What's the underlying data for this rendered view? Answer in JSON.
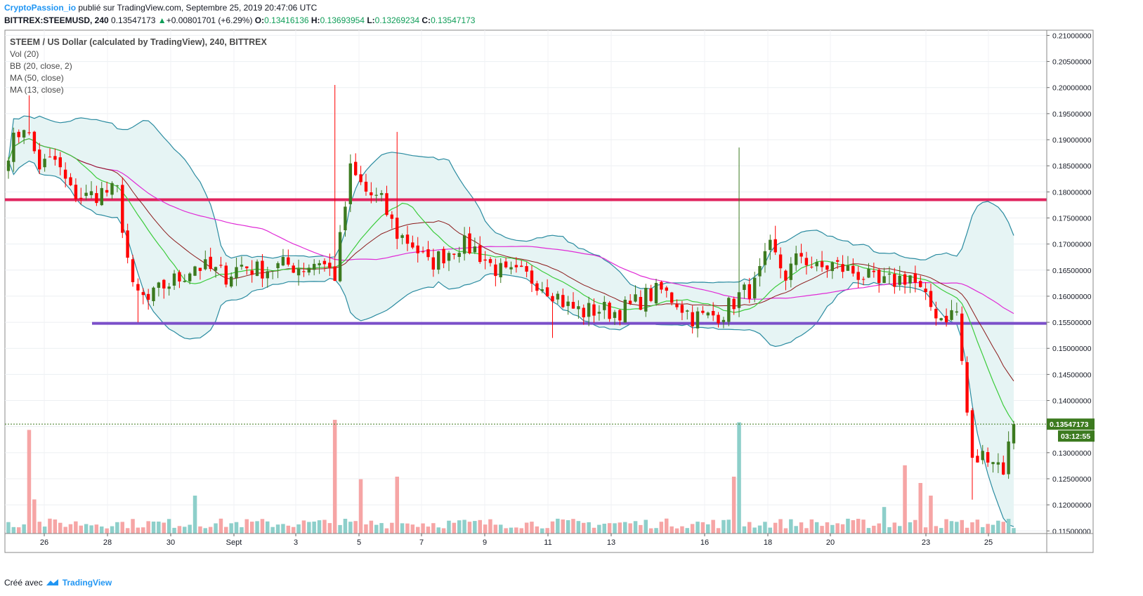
{
  "header": {
    "author": "CryptoPassion_io",
    "published_text": " publié sur TradingView.com, Septembre 25, 2019 20:47:06 UTC",
    "symbol": "BITTREX:STEEMUSD, 240",
    "last": "0.13547173",
    "change": "+0.00801701 (+6.29%)",
    "o_label": "O:",
    "o": "0.13416136",
    "h_label": "H:",
    "h": "0.13693954",
    "l_label": "L:",
    "l": "0.13269234",
    "c_label": "C:",
    "c": "0.13547173"
  },
  "legend": {
    "title": "STEEM / US Dollar (calculated by TradingView), 240, BITTREX",
    "vol": "Vol (20)",
    "bb": "BB (20, close, 2)",
    "ma50": "MA (50, close)",
    "ma13": "MA (13, close)"
  },
  "footer": {
    "created_with": "Créé avec",
    "brand": "TradingView"
  },
  "colors": {
    "up": "#3c7a1f",
    "down": "#ff0000",
    "vol_up": "#8dcfca",
    "vol_down": "#f6a5a5",
    "bb": "#2a8ba0",
    "bb_fill": "#e6f4f4",
    "ma13": "#3ccc3c",
    "ma50": "#e02bd6",
    "basis": "#8b1a1a",
    "hline_top": "#e0245e",
    "hline_bottom": "#7b4fc9",
    "price_tag": "#3c7a1f"
  },
  "chart_data": {
    "type": "candlestick",
    "ylim": [
      0.1145,
      0.211
    ],
    "y_ticks": [
      "0.21000000",
      "0.20500000",
      "0.20000000",
      "0.19500000",
      "0.19000000",
      "0.18500000",
      "0.18000000",
      "0.17500000",
      "0.17000000",
      "0.16500000",
      "0.16000000",
      "0.15500000",
      "0.15000000",
      "0.14500000",
      "0.14000000",
      "0.13500000",
      "0.13000000",
      "0.12500000",
      "0.12000000",
      "0.11500000"
    ],
    "x_ticks": [
      "26",
      "28",
      "30",
      "Sept",
      "3",
      "5",
      "7",
      "9",
      "11",
      "13",
      "16",
      "18",
      "20",
      "23",
      "25"
    ],
    "horizontal_lines": [
      0.1785,
      0.1548
    ],
    "last_price": "0.13547173",
    "countdown": "03:12:55",
    "close_anchors": [
      [
        0,
        0.188
      ],
      [
        3,
        0.193
      ],
      [
        6,
        0.185
      ],
      [
        9,
        0.186
      ],
      [
        12,
        0.18
      ],
      [
        15,
        0.179
      ],
      [
        18,
        0.18
      ],
      [
        21,
        0.18
      ],
      [
        24,
        0.161
      ],
      [
        27,
        0.159
      ],
      [
        30,
        0.162
      ],
      [
        33,
        0.1635
      ],
      [
        36,
        0.166
      ],
      [
        39,
        0.165
      ],
      [
        42,
        0.164
      ],
      [
        45,
        0.166
      ],
      [
        48,
        0.165
      ],
      [
        51,
        0.1655
      ],
      [
        54,
        0.166
      ],
      [
        57,
        0.1655
      ],
      [
        60,
        0.167
      ],
      [
        63,
        0.164
      ],
      [
        66,
        0.184
      ],
      [
        69,
        0.18
      ],
      [
        72,
        0.178
      ],
      [
        75,
        0.172
      ],
      [
        78,
        0.17
      ],
      [
        81,
        0.166
      ],
      [
        84,
        0.168
      ],
      [
        87,
        0.17
      ],
      [
        90,
        0.169
      ],
      [
        93,
        0.166
      ],
      [
        96,
        0.164
      ],
      [
        99,
        0.164
      ],
      [
        102,
        0.163
      ],
      [
        105,
        0.161
      ],
      [
        108,
        0.158
      ],
      [
        111,
        0.157
      ],
      [
        114,
        0.1575
      ],
      [
        117,
        0.157
      ],
      [
        120,
        0.158
      ],
      [
        123,
        0.16
      ],
      [
        126,
        0.161
      ],
      [
        129,
        0.159
      ],
      [
        132,
        0.156
      ],
      [
        135,
        0.156
      ],
      [
        138,
        0.157
      ],
      [
        141,
        0.16
      ],
      [
        144,
        0.162
      ],
      [
        147,
        0.169
      ],
      [
        150,
        0.164
      ],
      [
        153,
        0.168
      ],
      [
        156,
        0.165
      ],
      [
        159,
        0.166
      ],
      [
        162,
        0.165
      ],
      [
        165,
        0.164
      ],
      [
        168,
        0.162
      ],
      [
        171,
        0.163
      ],
      [
        174,
        0.164
      ],
      [
        177,
        0.159
      ],
      [
        180,
        0.156
      ],
      [
        183,
        0.157
      ],
      [
        186,
        0.128
      ],
      [
        189,
        0.13
      ],
      [
        192,
        0.127
      ],
      [
        194,
        0.1355
      ]
    ],
    "volume_spikes": [
      [
        4,
        0.82
      ],
      [
        5,
        0.27
      ],
      [
        36,
        0.3
      ],
      [
        63,
        0.9
      ],
      [
        68,
        0.43
      ],
      [
        75,
        0.45
      ],
      [
        140,
        0.45
      ],
      [
        141,
        0.88
      ],
      [
        169,
        0.21
      ],
      [
        173,
        0.54
      ],
      [
        176,
        0.4
      ],
      [
        178,
        0.3
      ]
    ]
  }
}
